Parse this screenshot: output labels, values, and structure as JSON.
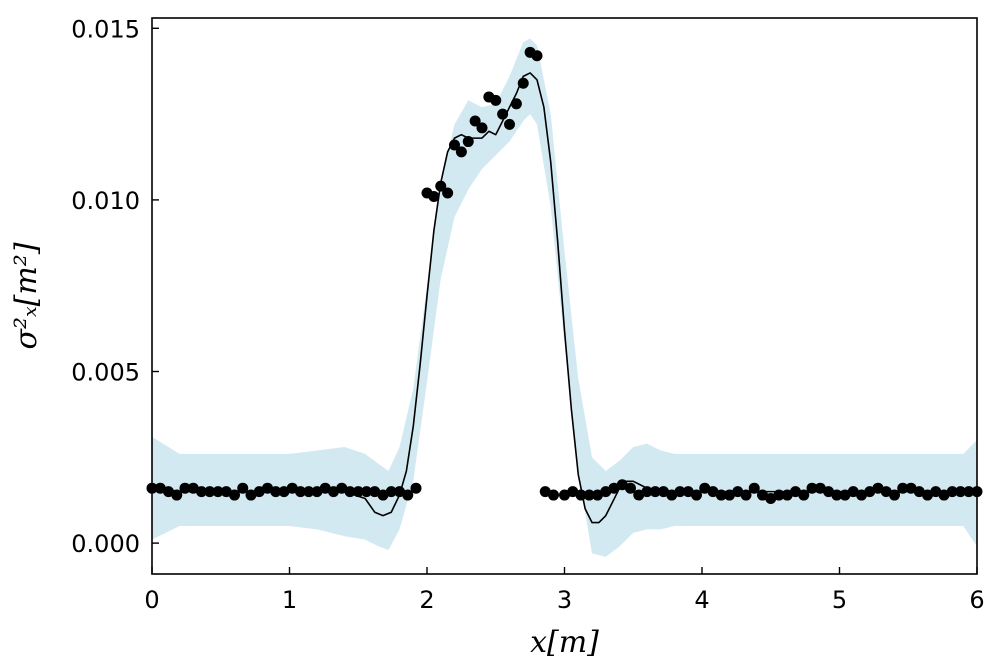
{
  "chart_data": {
    "type": "scatter",
    "xlabel": "x[m]",
    "ylabel": "σ²ₓ[m²]",
    "xlim": [
      0,
      6
    ],
    "ylim": [
      -0.0009,
      0.0153
    ],
    "x_ticks": [
      0,
      1,
      2,
      3,
      4,
      5,
      6
    ],
    "x_tick_labels": [
      "0",
      "1",
      "2",
      "3",
      "4",
      "5",
      "6"
    ],
    "y_ticks": [
      0.0,
      0.005,
      0.01,
      0.015
    ],
    "y_tick_labels": [
      "0.000",
      "0.005",
      "0.010",
      "0.015"
    ],
    "grid": false,
    "legend": "none",
    "colors": {
      "band": "#d2e9f1",
      "line": "#000000",
      "points": "#000000"
    },
    "series": [
      {
        "kind": "band",
        "x": [
          0,
          0.2,
          0.4,
          0.6,
          0.8,
          1.0,
          1.2,
          1.4,
          1.55,
          1.65,
          1.72,
          1.8,
          1.9,
          2.0,
          2.1,
          2.2,
          2.3,
          2.4,
          2.5,
          2.6,
          2.7,
          2.75,
          2.8,
          2.9,
          3.0,
          3.1,
          3.2,
          3.3,
          3.4,
          3.5,
          3.6,
          3.7,
          3.8,
          4.0,
          4.5,
          5.0,
          5.5,
          5.9,
          6.0
        ],
        "upper": [
          0.0031,
          0.0026,
          0.0026,
          0.0026,
          0.0026,
          0.0026,
          0.0027,
          0.0028,
          0.0026,
          0.0023,
          0.0021,
          0.0028,
          0.0045,
          0.0075,
          0.0105,
          0.0122,
          0.0129,
          0.0127,
          0.0128,
          0.0136,
          0.0146,
          0.0147,
          0.0145,
          0.0125,
          0.0085,
          0.0048,
          0.0025,
          0.0021,
          0.0024,
          0.0028,
          0.0029,
          0.0027,
          0.0026,
          0.0026,
          0.0026,
          0.0026,
          0.0026,
          0.0026,
          0.003
        ],
        "lower": [
          0.0001,
          0.0005,
          0.0005,
          0.0005,
          0.0005,
          0.0005,
          0.0004,
          0.0002,
          0.0001,
          -0.0001,
          -0.0002,
          0.0004,
          0.0018,
          0.0047,
          0.0077,
          0.0095,
          0.0103,
          0.0109,
          0.0113,
          0.0117,
          0.0123,
          0.0125,
          0.0122,
          0.0098,
          0.0058,
          0.0021,
          -0.0003,
          -0.0004,
          -0.0001,
          0.0003,
          0.0004,
          0.0004,
          0.0005,
          0.0005,
          0.0005,
          0.0005,
          0.0005,
          0.0005,
          -0.0001
        ]
      },
      {
        "kind": "line",
        "x": [
          0,
          0.2,
          0.4,
          0.6,
          0.8,
          1.0,
          1.2,
          1.4,
          1.55,
          1.62,
          1.68,
          1.74,
          1.8,
          1.85,
          1.9,
          1.95,
          2.0,
          2.05,
          2.1,
          2.15,
          2.2,
          2.25,
          2.3,
          2.35,
          2.4,
          2.45,
          2.5,
          2.55,
          2.6,
          2.65,
          2.7,
          2.75,
          2.8,
          2.85,
          2.9,
          2.95,
          3.0,
          3.05,
          3.1,
          3.15,
          3.2,
          3.25,
          3.3,
          3.35,
          3.4,
          3.45,
          3.5,
          3.55,
          3.6,
          3.65,
          3.7,
          3.8,
          4.0,
          4.5,
          5.0,
          5.5,
          6.0
        ],
        "y": [
          0.0016,
          0.0015,
          0.0015,
          0.0015,
          0.0015,
          0.0015,
          0.0015,
          0.0015,
          0.0013,
          0.0009,
          0.0008,
          0.0009,
          0.0014,
          0.0021,
          0.0034,
          0.0052,
          0.0072,
          0.0091,
          0.0105,
          0.0114,
          0.0118,
          0.0119,
          0.0118,
          0.0118,
          0.0118,
          0.012,
          0.0119,
          0.0123,
          0.0127,
          0.0131,
          0.0136,
          0.0137,
          0.0135,
          0.0127,
          0.0111,
          0.0088,
          0.0062,
          0.0039,
          0.002,
          0.001,
          0.0006,
          0.0006,
          0.0008,
          0.0012,
          0.0016,
          0.0018,
          0.0018,
          0.0017,
          0.0016,
          0.0015,
          0.0015,
          0.0015,
          0.0015,
          0.0015,
          0.0015,
          0.0015,
          0.0015
        ]
      },
      {
        "kind": "points",
        "x": [
          0,
          0.06,
          0.12,
          0.18,
          0.24,
          0.3,
          0.36,
          0.42,
          0.48,
          0.54,
          0.6,
          0.66,
          0.72,
          0.78,
          0.84,
          0.9,
          0.96,
          1.02,
          1.08,
          1.14,
          1.2,
          1.26,
          1.32,
          1.38,
          1.44,
          1.5,
          1.56,
          1.62,
          1.68,
          1.74,
          1.8,
          1.86,
          1.92,
          2.0,
          2.05,
          2.1,
          2.15,
          2.2,
          2.25,
          2.3,
          2.35,
          2.4,
          2.45,
          2.5,
          2.55,
          2.6,
          2.65,
          2.7,
          2.75,
          2.8,
          2.86,
          2.92,
          3.0,
          3.06,
          3.12,
          3.18,
          3.24,
          3.3,
          3.36,
          3.42,
          3.48,
          3.54,
          3.6,
          3.66,
          3.72,
          3.78,
          3.84,
          3.9,
          3.96,
          4.02,
          4.08,
          4.14,
          4.2,
          4.26,
          4.32,
          4.38,
          4.44,
          4.5,
          4.56,
          4.62,
          4.68,
          4.74,
          4.8,
          4.86,
          4.92,
          4.98,
          5.04,
          5.1,
          5.16,
          5.22,
          5.28,
          5.34,
          5.4,
          5.46,
          5.52,
          5.58,
          5.64,
          5.7,
          5.76,
          5.82,
          5.88,
          5.94,
          6.0
        ],
        "y": [
          0.0016,
          0.0016,
          0.0015,
          0.0014,
          0.0016,
          0.0016,
          0.0015,
          0.0015,
          0.0015,
          0.0015,
          0.0014,
          0.0016,
          0.0014,
          0.0015,
          0.0016,
          0.0015,
          0.0015,
          0.0016,
          0.0015,
          0.0015,
          0.0015,
          0.0016,
          0.0015,
          0.0016,
          0.0015,
          0.0015,
          0.0015,
          0.0015,
          0.0014,
          0.0015,
          0.0015,
          0.0014,
          0.0016,
          0.0102,
          0.0101,
          0.0104,
          0.0102,
          0.0116,
          0.0114,
          0.0117,
          0.0123,
          0.0121,
          0.013,
          0.0129,
          0.0125,
          0.0122,
          0.0128,
          0.0134,
          0.0143,
          0.0142,
          0.0015,
          0.0014,
          0.0014,
          0.0015,
          0.0014,
          0.0014,
          0.0014,
          0.0015,
          0.0016,
          0.0017,
          0.0016,
          0.0014,
          0.0015,
          0.0015,
          0.0015,
          0.0014,
          0.0015,
          0.0015,
          0.0014,
          0.0016,
          0.0015,
          0.0014,
          0.0014,
          0.0015,
          0.0014,
          0.0016,
          0.0014,
          0.0013,
          0.0014,
          0.0014,
          0.0015,
          0.0014,
          0.0016,
          0.0016,
          0.0015,
          0.0014,
          0.0014,
          0.0015,
          0.0014,
          0.0015,
          0.0016,
          0.0015,
          0.0014,
          0.0016,
          0.0016,
          0.0015,
          0.0014,
          0.0015,
          0.0014,
          0.0015,
          0.0015,
          0.0015,
          0.0015
        ]
      }
    ]
  }
}
